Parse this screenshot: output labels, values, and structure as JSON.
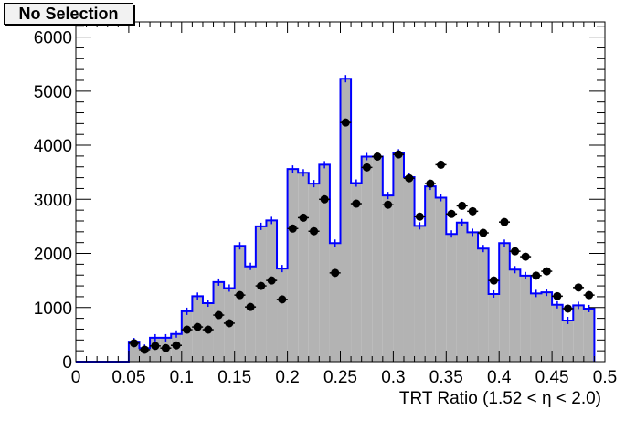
{
  "chart_data": {
    "type": "bar",
    "title": "No Selection",
    "xlabel": "TRT Ratio (1.52 <  η < 2.0)",
    "ylabel": "",
    "xlim": [
      0,
      0.5
    ],
    "ylim": [
      0,
      6280
    ],
    "grid": false,
    "x_ticks": [
      "0",
      "0.05",
      "0.1",
      "0.15",
      "0.2",
      "0.25",
      "0.3",
      "0.35",
      "0.4",
      "0.45",
      "0.5"
    ],
    "y_ticks": [
      "0",
      "1000",
      "2000",
      "3000",
      "4000",
      "5000",
      "6000"
    ],
    "bin_width": 0.01,
    "histogram": {
      "fill_color": "#b3b3b3",
      "line_color": "#0000ff",
      "bin_low_edges": [
        0.05,
        0.06,
        0.07,
        0.08,
        0.09,
        0.1,
        0.11,
        0.12,
        0.13,
        0.14,
        0.15,
        0.16,
        0.17,
        0.18,
        0.19,
        0.2,
        0.21,
        0.22,
        0.23,
        0.24,
        0.25,
        0.26,
        0.27,
        0.28,
        0.29,
        0.3,
        0.31,
        0.32,
        0.33,
        0.34,
        0.35,
        0.36,
        0.37,
        0.38,
        0.39,
        0.4,
        0.41,
        0.42,
        0.43,
        0.44,
        0.45,
        0.46,
        0.47,
        0.48
      ],
      "values": [
        370,
        250,
        440,
        440,
        510,
        930,
        1210,
        1080,
        1470,
        1360,
        2140,
        1760,
        2500,
        2610,
        1720,
        3560,
        3490,
        3290,
        3640,
        2190,
        5230,
        3300,
        3790,
        3790,
        3070,
        3860,
        3410,
        2510,
        3240,
        3030,
        2360,
        2570,
        2390,
        2090,
        1250,
        2190,
        1700,
        1590,
        1260,
        1280,
        1050,
        760,
        1040,
        980
      ]
    },
    "points": {
      "color": "#000000",
      "x": [
        0.055,
        0.065,
        0.075,
        0.085,
        0.095,
        0.105,
        0.115,
        0.125,
        0.135,
        0.145,
        0.155,
        0.165,
        0.175,
        0.185,
        0.195,
        0.205,
        0.215,
        0.225,
        0.235,
        0.245,
        0.255,
        0.265,
        0.275,
        0.285,
        0.295,
        0.305,
        0.315,
        0.325,
        0.335,
        0.345,
        0.355,
        0.365,
        0.375,
        0.385,
        0.395,
        0.405,
        0.415,
        0.425,
        0.435,
        0.445,
        0.455,
        0.465,
        0.475,
        0.485
      ],
      "values": [
        340,
        220,
        290,
        250,
        300,
        590,
        640,
        590,
        860,
        710,
        1230,
        1010,
        1400,
        1500,
        1150,
        2460,
        2660,
        2410,
        3000,
        1640,
        4420,
        2920,
        3590,
        3790,
        2900,
        3830,
        3390,
        2680,
        3290,
        3640,
        2730,
        2880,
        2780,
        2380,
        1500,
        2580,
        2040,
        1940,
        1590,
        1670,
        1210,
        980,
        1370,
        1230
      ]
    }
  }
}
